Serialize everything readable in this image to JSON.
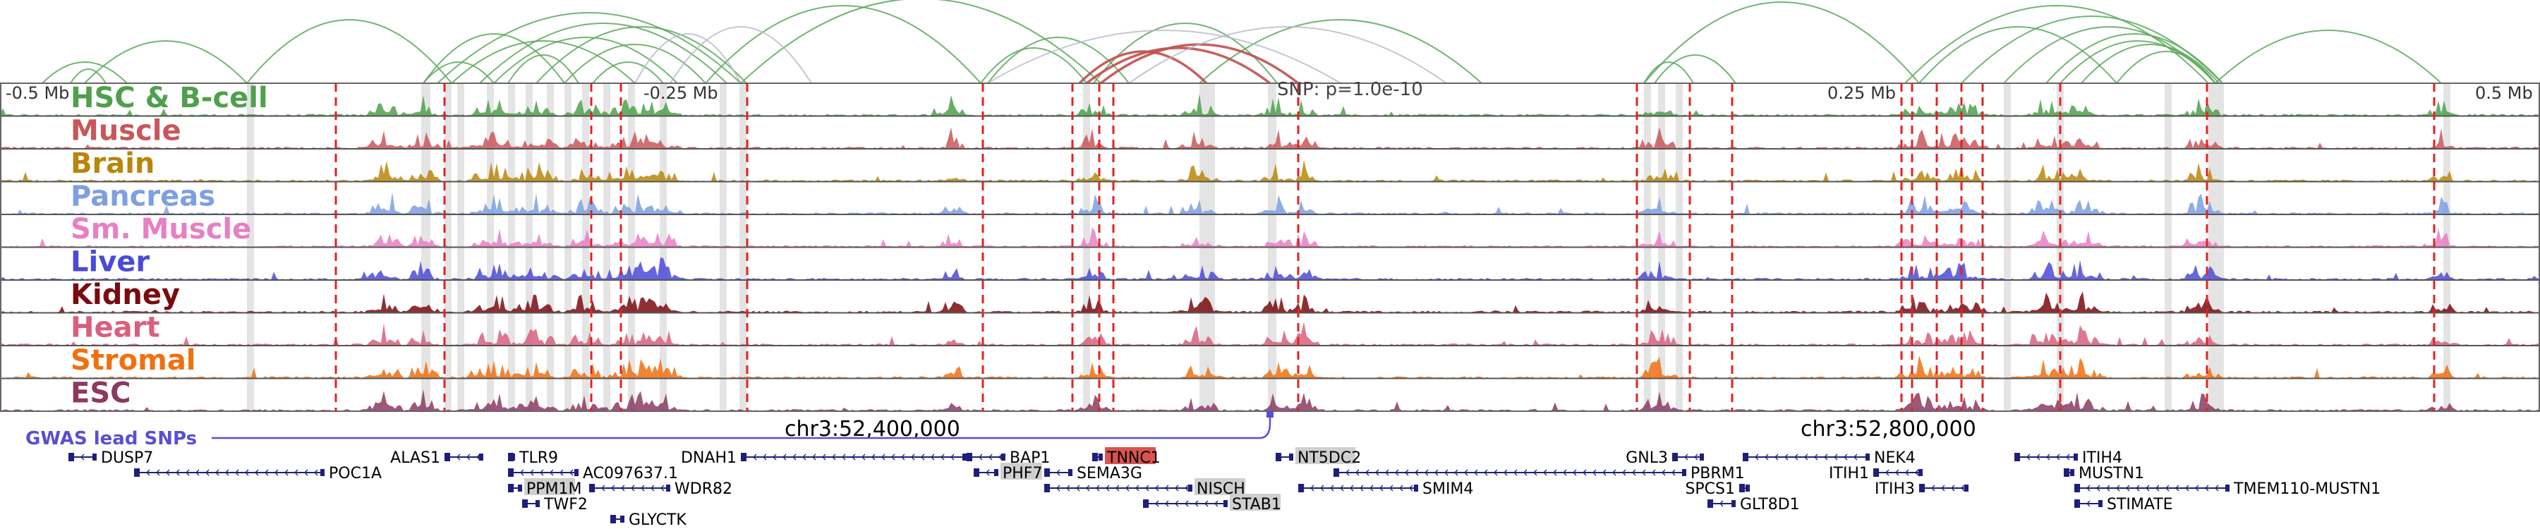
{
  "axis": {
    "left": "-0.5 Mb",
    "left_mid": "-0.25 Mb",
    "right_mid": "0.25 Mb",
    "right": "0.5 Mb",
    "snp_label": "SNP: p=1.0e-10",
    "coord_left": "chr3:52,400,000",
    "coord_right": "chr3:52,800,000"
  },
  "gwas_label": "GWAS lead SNPs",
  "tracks": [
    {
      "name": "HSC & B-cell",
      "color": "#4fa04b"
    },
    {
      "name": "Muscle",
      "color": "#c8575b"
    },
    {
      "name": "Brain",
      "color": "#b8860b"
    },
    {
      "name": "Pancreas",
      "color": "#7e9fe0"
    },
    {
      "name": "Sm. Muscle",
      "color": "#e77fc4"
    },
    {
      "name": "Liver",
      "color": "#4a4ad8"
    },
    {
      "name": "Kidney",
      "color": "#7a0a10"
    },
    {
      "name": "Heart",
      "color": "#d8607c"
    },
    {
      "name": "Stromal",
      "color": "#f07010"
    },
    {
      "name": "ESC",
      "color": "#8b3a62"
    }
  ],
  "genes": [
    {
      "name": "DUSP7",
      "highlight": false
    },
    {
      "name": "POC1A",
      "highlight": false
    },
    {
      "name": "ALAS1",
      "highlight": false
    },
    {
      "name": "TLR9",
      "highlight": false
    },
    {
      "name": "AC097637.1",
      "highlight": false
    },
    {
      "name": "PPM1M",
      "highlight": true
    },
    {
      "name": "WDR82",
      "highlight": false
    },
    {
      "name": "TWF2",
      "highlight": false
    },
    {
      "name": "GLYCTK",
      "highlight": false
    },
    {
      "name": "DNAH1",
      "highlight": false
    },
    {
      "name": "BAP1",
      "highlight": false
    },
    {
      "name": "PHF7",
      "highlight": true
    },
    {
      "name": "TNNC1",
      "highlight": true,
      "accent": true
    },
    {
      "name": "SEMA3G",
      "highlight": false
    },
    {
      "name": "NISCH",
      "highlight": true
    },
    {
      "name": "STAB1",
      "highlight": true
    },
    {
      "name": "NT5DC2",
      "highlight": true
    },
    {
      "name": "SMIM4",
      "highlight": false
    },
    {
      "name": "GNL3",
      "highlight": false
    },
    {
      "name": "PBRM1",
      "highlight": false
    },
    {
      "name": "SPCS1",
      "highlight": false
    },
    {
      "name": "GLT8D1",
      "highlight": false
    },
    {
      "name": "NEK4",
      "highlight": false
    },
    {
      "name": "ITIH1",
      "highlight": false
    },
    {
      "name": "ITIH3",
      "highlight": false
    },
    {
      "name": "ITIH4",
      "highlight": false
    },
    {
      "name": "MUSTN1",
      "highlight": false
    },
    {
      "name": "TMEM110-MUSTN1",
      "highlight": false
    },
    {
      "name": "STIMATE",
      "highlight": false
    }
  ],
  "colors": {
    "arc_green": "#5aa85a",
    "arc_red": "#c0504d",
    "arc_gray": "#b8b8c8",
    "red_line": "#e32222",
    "gene_blue": "#1f1f7a",
    "highlight_bg": "#cfcfcf",
    "accent_bg": "#d9534f",
    "gwas_line": "#5a4fcf"
  }
}
